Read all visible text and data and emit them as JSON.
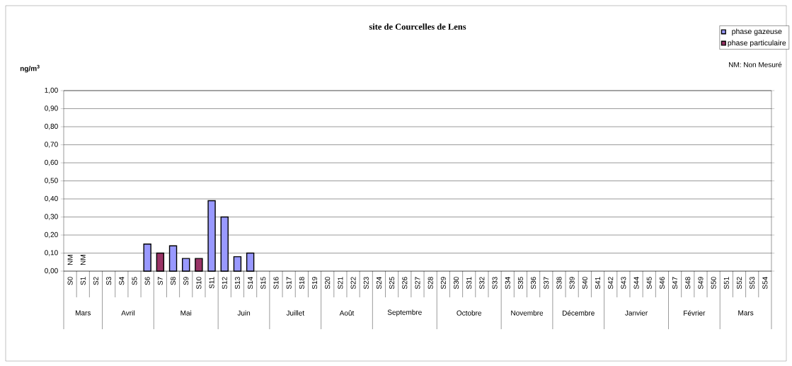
{
  "chart_data": {
    "type": "bar",
    "title": "site de Courcelles de Lens",
    "ylabel": "ng/m$^{3}$",
    "categories": [
      "S0",
      "S1",
      "S2",
      "S3",
      "S4",
      "S5",
      "S6",
      "S7",
      "S8",
      "S9",
      "S10",
      "S11",
      "S12",
      "S13",
      "S14",
      "S15",
      "S16",
      "S17",
      "S18",
      "S19",
      "S20",
      "S21",
      "S22",
      "S23",
      "S24",
      "S25",
      "S26",
      "S27",
      "S28",
      "S29",
      "S30",
      "S31",
      "S32",
      "S33",
      "S34",
      "S35",
      "S36",
      "S37",
      "S38",
      "S39",
      "S40",
      "S41",
      "S42",
      "S43",
      "S44",
      "S45",
      "S46",
      "S47",
      "S48",
      "S49",
      "S50",
      "S51",
      "S52",
      "S53",
      "S54"
    ],
    "series": [
      {
        "name": "phase gazeuse",
        "color": "#9999ff",
        "values": [
          null,
          null,
          null,
          null,
          null,
          null,
          0.15,
          null,
          0.14,
          0.07,
          null,
          0.39,
          0.3,
          0.08,
          0.1,
          null,
          null,
          null,
          null,
          null,
          null,
          null,
          null,
          null,
          null,
          null,
          null,
          null,
          null,
          null,
          null,
          null,
          null,
          null,
          null,
          null,
          null,
          null,
          null,
          null,
          null,
          null,
          null,
          null,
          null,
          null,
          null,
          null,
          null,
          null,
          null,
          null,
          null,
          null,
          null
        ]
      },
      {
        "name": "phase particulaire",
        "color": "#993366",
        "values": [
          null,
          null,
          null,
          null,
          null,
          null,
          null,
          0.1,
          null,
          null,
          0.07,
          null,
          null,
          null,
          null,
          null,
          null,
          null,
          null,
          null,
          null,
          null,
          null,
          null,
          null,
          null,
          null,
          null,
          null,
          null,
          null,
          null,
          null,
          null,
          null,
          null,
          null,
          null,
          null,
          null,
          null,
          null,
          null,
          null,
          null,
          null,
          null,
          null,
          null,
          null,
          null,
          null,
          null,
          null,
          null
        ]
      }
    ],
    "ylim": [
      0,
      1
    ],
    "yticks": [
      {
        "value": 0,
        "label": "0,00"
      },
      {
        "value": 0.1,
        "label": "0,10"
      },
      {
        "value": 0.2,
        "label": "0,20"
      },
      {
        "value": 0.3,
        "label": "0,30"
      },
      {
        "value": 0.4,
        "label": "0,40"
      },
      {
        "value": 0.5,
        "label": "0,50"
      },
      {
        "value": 0.6,
        "label": "0,60"
      },
      {
        "value": 0.7,
        "label": "0,70"
      },
      {
        "value": 0.8,
        "label": "0,80"
      },
      {
        "value": 0.9,
        "label": "0,90"
      },
      {
        "value": 1,
        "label": "1,00"
      }
    ],
    "grid": "y",
    "legend": "top right",
    "annotations": [
      "NM",
      "NM",
      "NM: Non Mesuré",
      "Mars",
      "Avril",
      "Mai",
      "Juin",
      "Juillet",
      "Août",
      "Septembre",
      "Octobre",
      "Novembre",
      "Décembre",
      "Janvier",
      "Février",
      "Mars"
    ]
  }
}
